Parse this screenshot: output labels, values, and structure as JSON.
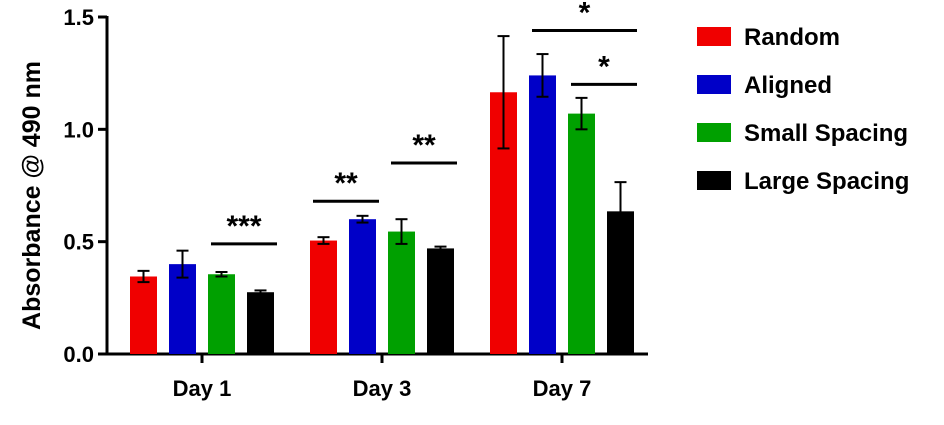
{
  "chart_data": {
    "type": "bar",
    "title": "",
    "xlabel": "",
    "ylabel": "Absorbance @ 490 nm",
    "ylim": [
      0,
      1.5
    ],
    "yticks": [
      "0.0",
      "0.5",
      "1.0",
      "1.5"
    ],
    "yticks_values": [
      0,
      0.5,
      1.0,
      1.5
    ],
    "categories": [
      "Day 1",
      "Day 3",
      "Day 7"
    ],
    "legend_position": "right",
    "series": [
      {
        "name": "Random",
        "color": "#f00000",
        "values": [
          0.345,
          0.505,
          1.165
        ],
        "errors": [
          0.025,
          0.015,
          0.25
        ]
      },
      {
        "name": "Aligned",
        "color": "#0000c8",
        "values": [
          0.4,
          0.6,
          1.24
        ],
        "errors": [
          0.06,
          0.015,
          0.095
        ]
      },
      {
        "name": "Small Spacing",
        "color": "#00a000",
        "values": [
          0.355,
          0.545,
          1.07
        ],
        "errors": [
          0.01,
          0.055,
          0.07
        ]
      },
      {
        "name": "Large Spacing",
        "color": "#000000",
        "values": [
          0.275,
          0.47,
          0.635
        ],
        "errors": [
          0.008,
          0.008,
          0.13
        ]
      }
    ],
    "significance": [
      {
        "label": "***",
        "category": 0,
        "from_series": 2,
        "to_series": 3,
        "level": 0.49
      },
      {
        "label": "**",
        "category": 1,
        "from_series": 0,
        "to_series": 1,
        "level": 0.68
      },
      {
        "label": "**",
        "category": 1,
        "from_series": 2,
        "to_series": 3,
        "level": 0.85
      },
      {
        "label": "*",
        "category": 2,
        "from_series": 1,
        "to_series": 3,
        "level": 1.44
      },
      {
        "label": "*",
        "category": 2,
        "from_series": 2,
        "to_series": 3,
        "level": 1.2
      }
    ]
  }
}
